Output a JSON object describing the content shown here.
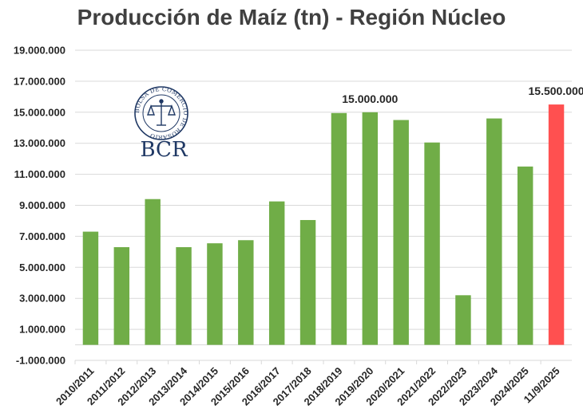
{
  "chart_data": {
    "type": "bar",
    "title": "Producción de Maíz (tn) - Región Núcleo",
    "xlabel": "",
    "ylabel": "",
    "categories": [
      "2010/2011",
      "2011/2012",
      "2012/2013",
      "2013/2014",
      "2014/2015",
      "2015/2016",
      "2016/2017",
      "2017/2018",
      "2018/2019",
      "2019/2020",
      "2020/2021",
      "2021/2022",
      "2022/2023",
      "2023/2024",
      "2024/2025",
      "11/9/2025"
    ],
    "values": [
      7300000,
      6300000,
      9400000,
      6300000,
      6550000,
      6750000,
      9250000,
      8050000,
      14950000,
      15000000,
      14500000,
      13050000,
      3200000,
      14600000,
      11500000,
      15500000
    ],
    "bar_colors": [
      "#70ad47",
      "#70ad47",
      "#70ad47",
      "#70ad47",
      "#70ad47",
      "#70ad47",
      "#70ad47",
      "#70ad47",
      "#70ad47",
      "#70ad47",
      "#70ad47",
      "#70ad47",
      "#70ad47",
      "#70ad47",
      "#70ad47",
      "#ff5050"
    ],
    "data_labels": [
      {
        "index": 9,
        "text": "15.000.000"
      },
      {
        "index": 15,
        "text": "15.500.000"
      }
    ],
    "ylim": [
      -1000000,
      19000000
    ],
    "yticks": [
      -1000000,
      1000000,
      3000000,
      5000000,
      7000000,
      9000000,
      11000000,
      13000000,
      15000000,
      17000000,
      19000000
    ],
    "ytick_labels": [
      "-1.000.000",
      "1.000.000",
      "3.000.000",
      "5.000.000",
      "7.000.000",
      "9.000.000",
      "11.000.000",
      "13.000.000",
      "15.000.000",
      "17.000.000",
      "19.000.000"
    ],
    "grid": true,
    "legend": "none"
  },
  "logo": {
    "text": "BCR",
    "ring_text": "BOLSA DE COMERCIO DE ROSARIO",
    "color": "#1f3864"
  }
}
